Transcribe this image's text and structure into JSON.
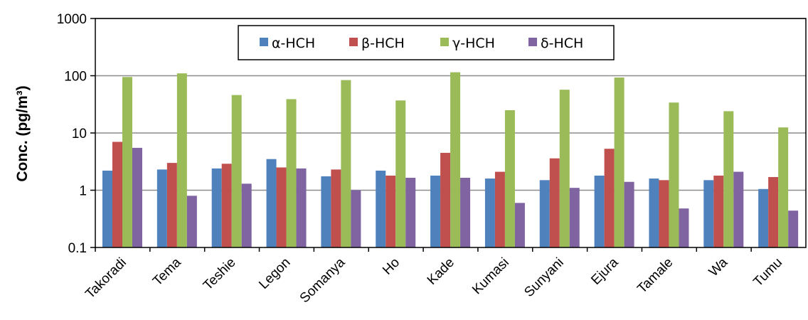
{
  "chart_data": {
    "type": "bar",
    "title": "",
    "xlabel": "",
    "ylabel": "Conc. (pg/m³)",
    "yscale": "log",
    "ylim": [
      0.1,
      1000
    ],
    "yticks": [
      "0.1",
      "1",
      "10",
      "100",
      "1000"
    ],
    "grid": "horizontal",
    "legend": "top-center",
    "categories": [
      "Takoradi",
      "Tema",
      "Teshie",
      "Legon",
      "Somanya",
      "Ho",
      "Kade",
      "Kumasi",
      "Sunyani",
      "Ejura",
      "Tamale",
      "Wa",
      "Tumu"
    ],
    "series": [
      {
        "name": "α-HCH",
        "color": "#4F81BD",
        "values": [
          2.2,
          2.3,
          2.4,
          3.5,
          1.75,
          2.2,
          1.8,
          1.6,
          1.5,
          1.8,
          1.6,
          1.5,
          1.05
        ]
      },
      {
        "name": "β-HCH",
        "color": "#C0504D",
        "values": [
          7.0,
          3.0,
          2.9,
          2.5,
          2.3,
          1.8,
          4.5,
          2.1,
          3.6,
          5.3,
          1.5,
          1.8,
          1.7
        ]
      },
      {
        "name": "γ-HCH",
        "color": "#9BBB59",
        "values": [
          95,
          110,
          46,
          39,
          84,
          37,
          115,
          25,
          57,
          93,
          34,
          24,
          12.5
        ]
      },
      {
        "name": "δ-HCH",
        "color": "#8064A2",
        "values": [
          5.5,
          0.8,
          1.3,
          2.4,
          1.0,
          1.65,
          1.65,
          0.6,
          1.1,
          1.4,
          0.48,
          2.1,
          0.44
        ]
      }
    ]
  }
}
